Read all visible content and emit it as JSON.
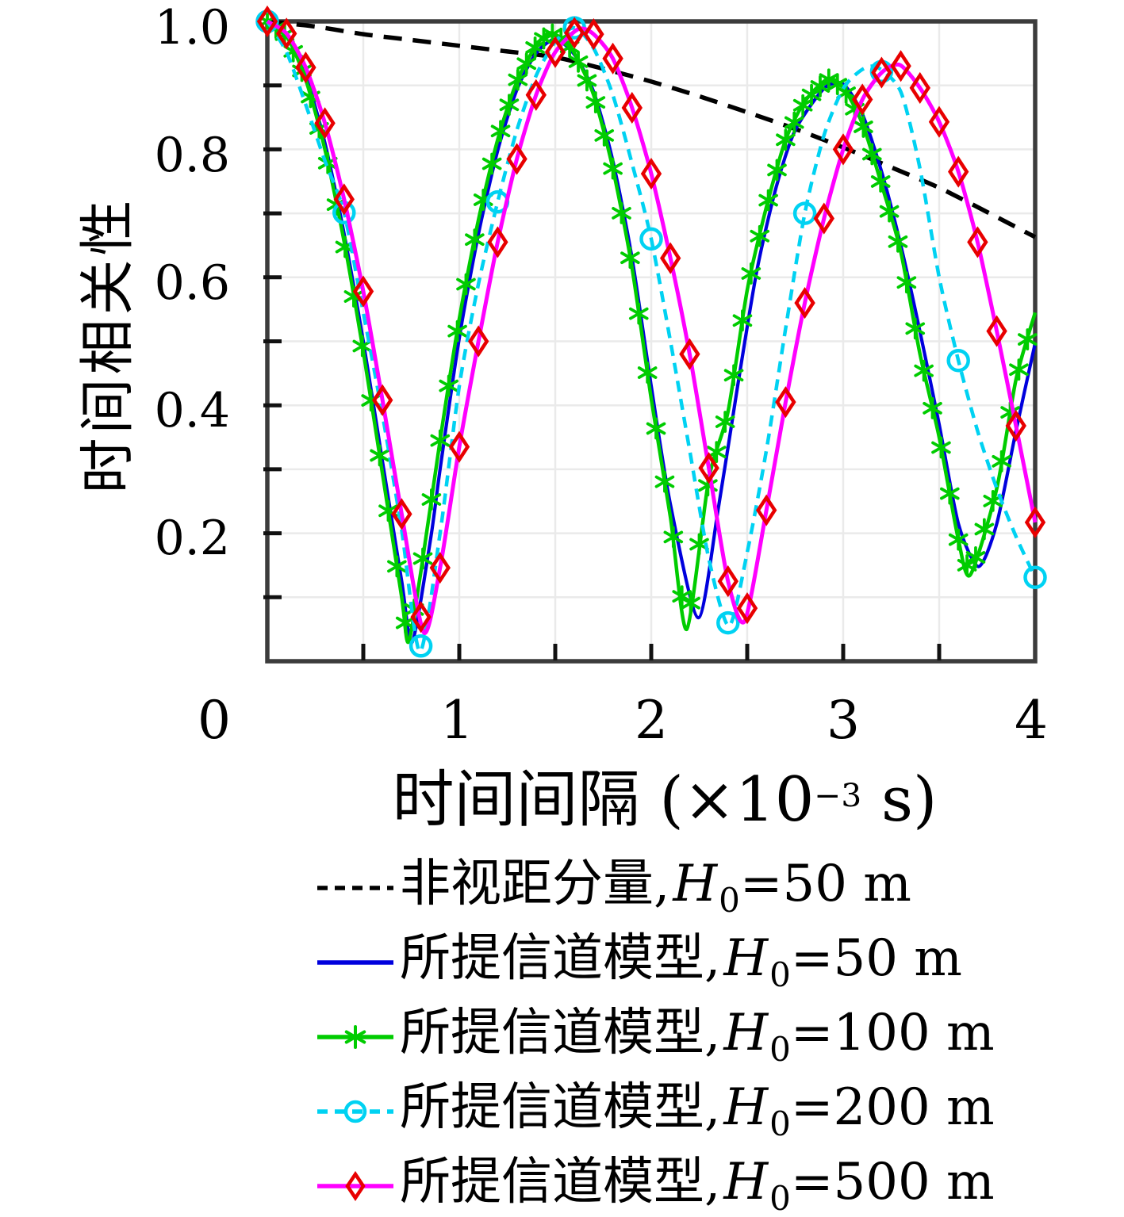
{
  "figure": {
    "ylabel": "时间相关性",
    "xlabel_prefix": "时间间隔 (×10",
    "xlabel_sup": "−3",
    "xlabel_suffix": " s)"
  },
  "legend": {
    "h_var": "H",
    "h_sub": "0",
    "items": [
      {
        "label_prefix": "非视距分量,",
        "label_value": "=50 m"
      },
      {
        "label_prefix": "所提信道模型,",
        "label_value": "=50 m"
      },
      {
        "label_prefix": "所提信道模型,",
        "label_value": "=100 m"
      },
      {
        "label_prefix": "所提信道模型,",
        "label_value": "=200 m"
      },
      {
        "label_prefix": "所提信道模型,",
        "label_value": "=500 m"
      }
    ]
  },
  "chart_data": {
    "type": "line",
    "title": "",
    "xlabel": "时间间隔 (×10⁻³ s)",
    "ylabel": "时间相关性",
    "xlim": [
      0,
      4
    ],
    "ylim": [
      0,
      1.0
    ],
    "grid": {
      "on": true,
      "x_step": 0.5,
      "y_step": 0.1,
      "color": "#eaeaea"
    },
    "axis_color": "#3c3c3c",
    "xticks": {
      "labels": [
        "0",
        "1",
        "2",
        "3",
        "4"
      ],
      "values": [
        0,
        1,
        2,
        3,
        4
      ],
      "minor_step": 0.5
    },
    "yticks": {
      "labels": [
        "1.0",
        "0.8",
        "0.6",
        "0.4",
        "0.2"
      ],
      "values": [
        1.0,
        0.8,
        0.6,
        0.4,
        0.2
      ],
      "minor_step": 0.1
    },
    "legend_position": "below",
    "series": [
      {
        "name": "非视距分量, H0=50 m",
        "color": "#000000",
        "width": 5.5,
        "dash": [
          23,
          14
        ],
        "marker": "none",
        "marker_color": "#000000",
        "marker_step": 0,
        "points": [
          [
            0,
            1.0
          ],
          [
            0.25,
            0.992
          ],
          [
            0.5,
            0.98
          ],
          [
            0.75,
            0.971
          ],
          [
            1,
            0.962
          ],
          [
            1.25,
            0.953
          ],
          [
            1.5,
            0.944
          ],
          [
            1.75,
            0.926
          ],
          [
            2,
            0.906
          ],
          [
            2.25,
            0.883
          ],
          [
            2.5,
            0.858
          ],
          [
            2.75,
            0.832
          ],
          [
            3,
            0.803
          ],
          [
            3.25,
            0.772
          ],
          [
            3.5,
            0.74
          ],
          [
            3.75,
            0.702
          ],
          [
            4,
            0.663
          ]
        ]
      },
      {
        "name": "所提信道模型, H0=50 m",
        "color": "#0000dd",
        "width": 4.2,
        "dash": null,
        "marker": "none",
        "marker_color": "#0000dd",
        "marker_step": 0,
        "points": [
          [
            0,
            1
          ],
          [
            0.1,
            0.978
          ],
          [
            0.2,
            0.915
          ],
          [
            0.3,
            0.81
          ],
          [
            0.4,
            0.668
          ],
          [
            0.5,
            0.5
          ],
          [
            0.6,
            0.312
          ],
          [
            0.7,
            0.125
          ],
          [
            0.755,
            0.03
          ],
          [
            0.85,
            0.19
          ],
          [
            0.9,
            0.3
          ],
          [
            1,
            0.505
          ],
          [
            1.1,
            0.668
          ],
          [
            1.2,
            0.798
          ],
          [
            1.3,
            0.893
          ],
          [
            1.4,
            0.95
          ],
          [
            1.5,
            0.972
          ],
          [
            1.6,
            0.948
          ],
          [
            1.7,
            0.89
          ],
          [
            1.8,
            0.782
          ],
          [
            1.9,
            0.63
          ],
          [
            2,
            0.43
          ],
          [
            2.1,
            0.245
          ],
          [
            2.245,
            0.068
          ],
          [
            2.35,
            0.24
          ],
          [
            2.45,
            0.43
          ],
          [
            2.55,
            0.61
          ],
          [
            2.65,
            0.74
          ],
          [
            2.75,
            0.83
          ],
          [
            2.9,
            0.895
          ],
          [
            3,
            0.902
          ],
          [
            3.1,
            0.855
          ],
          [
            3.2,
            0.765
          ],
          [
            3.3,
            0.65
          ],
          [
            3.4,
            0.515
          ],
          [
            3.5,
            0.37
          ],
          [
            3.6,
            0.215
          ],
          [
            3.705,
            0.148
          ],
          [
            3.8,
            0.215
          ],
          [
            3.9,
            0.36
          ],
          [
            4,
            0.497
          ]
        ]
      },
      {
        "name": "所提信道模型, H0=100 m",
        "color": "#00cc00",
        "width": 4.5,
        "dash": null,
        "marker": "asterisk",
        "marker_color": "#00cc00",
        "marker_step": 0.045,
        "points": [
          [
            0,
            1
          ],
          [
            0.1,
            0.977
          ],
          [
            0.2,
            0.909
          ],
          [
            0.3,
            0.8
          ],
          [
            0.4,
            0.656
          ],
          [
            0.5,
            0.484
          ],
          [
            0.6,
            0.293
          ],
          [
            0.7,
            0.1
          ],
          [
            0.735,
            0.03
          ],
          [
            0.8,
            0.14
          ],
          [
            0.9,
            0.345
          ],
          [
            1,
            0.535
          ],
          [
            1.1,
            0.69
          ],
          [
            1.2,
            0.815
          ],
          [
            1.3,
            0.906
          ],
          [
            1.4,
            0.962
          ],
          [
            1.47,
            0.982
          ],
          [
            1.55,
            0.97
          ],
          [
            1.6,
            0.95
          ],
          [
            1.7,
            0.885
          ],
          [
            1.8,
            0.77
          ],
          [
            1.9,
            0.615
          ],
          [
            2,
            0.41
          ],
          [
            2.1,
            0.225
          ],
          [
            2.185,
            0.05
          ],
          [
            2.3,
            0.285
          ],
          [
            2.4,
            0.39
          ],
          [
            2.5,
            0.58
          ],
          [
            2.6,
            0.71
          ],
          [
            2.7,
            0.815
          ],
          [
            2.8,
            0.875
          ],
          [
            2.92,
            0.91
          ],
          [
            3,
            0.897
          ],
          [
            3.1,
            0.84
          ],
          [
            3.2,
            0.745
          ],
          [
            3.3,
            0.64
          ],
          [
            3.4,
            0.48
          ],
          [
            3.5,
            0.35
          ],
          [
            3.6,
            0.19
          ],
          [
            3.662,
            0.135
          ],
          [
            3.8,
            0.27
          ],
          [
            3.9,
            0.44
          ],
          [
            4,
            0.545
          ]
        ]
      },
      {
        "name": "所提信道模型, H0=200 m",
        "color": "#00d2f2",
        "width": 4.5,
        "dash": [
          14,
          9
        ],
        "marker": "circle",
        "marker_color": "#00d2f2",
        "marker_step": 0.4,
        "points": [
          [
            0,
            1
          ],
          [
            0.1,
            0.952
          ],
          [
            0.2,
            0.87
          ],
          [
            0.3,
            0.782
          ],
          [
            0.4,
            0.701
          ],
          [
            0.5,
            0.545
          ],
          [
            0.6,
            0.385
          ],
          [
            0.7,
            0.205
          ],
          [
            0.795,
            0.015
          ],
          [
            0.9,
            0.2
          ],
          [
            1,
            0.43
          ],
          [
            1.1,
            0.59
          ],
          [
            1.2,
            0.718
          ],
          [
            1.3,
            0.83
          ],
          [
            1.4,
            0.915
          ],
          [
            1.5,
            0.968
          ],
          [
            1.6,
            0.99
          ],
          [
            1.7,
            0.958
          ],
          [
            1.8,
            0.885
          ],
          [
            1.9,
            0.778
          ],
          [
            2,
            0.66
          ],
          [
            2.1,
            0.5
          ],
          [
            2.2,
            0.33
          ],
          [
            2.3,
            0.16
          ],
          [
            2.405,
            0.055
          ],
          [
            2.5,
            0.17
          ],
          [
            2.6,
            0.33
          ],
          [
            2.7,
            0.52
          ],
          [
            2.8,
            0.7
          ],
          [
            2.9,
            0.822
          ],
          [
            3,
            0.895
          ],
          [
            3.1,
            0.925
          ],
          [
            3.18,
            0.928
          ],
          [
            3.3,
            0.89
          ],
          [
            3.4,
            0.77
          ],
          [
            3.5,
            0.6
          ],
          [
            3.6,
            0.47
          ],
          [
            3.7,
            0.36
          ],
          [
            3.8,
            0.27
          ],
          [
            3.9,
            0.195
          ],
          [
            4,
            0.131
          ]
        ]
      },
      {
        "name": "所提信道模型, H0=500 m",
        "color": "#ff00ff",
        "width": 5,
        "dash": null,
        "marker": "diamond",
        "marker_color": "#e80000",
        "marker_step": 0.1,
        "points": [
          [
            0,
            1
          ],
          [
            0.1,
            0.981
          ],
          [
            0.2,
            0.928
          ],
          [
            0.3,
            0.841
          ],
          [
            0.4,
            0.722
          ],
          [
            0.5,
            0.578
          ],
          [
            0.6,
            0.408
          ],
          [
            0.7,
            0.23
          ],
          [
            0.815,
            0.045
          ],
          [
            0.9,
            0.146
          ],
          [
            1,
            0.335
          ],
          [
            1.1,
            0.5
          ],
          [
            1.2,
            0.655
          ],
          [
            1.3,
            0.785
          ],
          [
            1.4,
            0.885
          ],
          [
            1.5,
            0.952
          ],
          [
            1.62,
            0.988
          ],
          [
            1.7,
            0.98
          ],
          [
            1.8,
            0.942
          ],
          [
            1.9,
            0.865
          ],
          [
            2,
            0.762
          ],
          [
            2.1,
            0.63
          ],
          [
            2.2,
            0.48
          ],
          [
            2.3,
            0.302
          ],
          [
            2.4,
            0.125
          ],
          [
            2.487,
            0.063
          ],
          [
            2.6,
            0.236
          ],
          [
            2.7,
            0.405
          ],
          [
            2.8,
            0.56
          ],
          [
            2.9,
            0.692
          ],
          [
            3,
            0.8
          ],
          [
            3.1,
            0.878
          ],
          [
            3.2,
            0.92
          ],
          [
            3.295,
            0.932
          ],
          [
            3.4,
            0.896
          ],
          [
            3.5,
            0.843
          ],
          [
            3.6,
            0.765
          ],
          [
            3.7,
            0.655
          ],
          [
            3.8,
            0.516
          ],
          [
            3.9,
            0.368
          ],
          [
            4,
            0.217
          ]
        ]
      }
    ]
  }
}
